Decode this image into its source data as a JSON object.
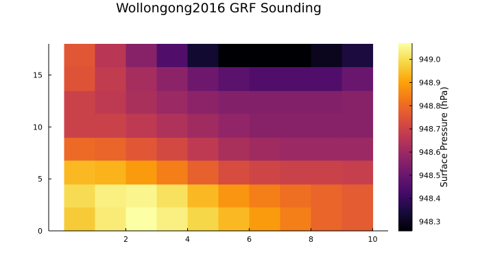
{
  "chart_data": {
    "type": "heatmap",
    "title": "Wollongong2016 GRF Sounding",
    "x_centers": [
      0.5,
      1.5,
      2.5,
      3.5,
      4.5,
      5.5,
      6.5,
      7.5,
      8.5,
      9.5
    ],
    "y_row_edges": [
      0,
      2.3,
      4.5,
      6.8,
      9.0,
      11.3,
      13.5,
      15.8,
      18.0
    ],
    "xlim": [
      -0.5,
      10.5
    ],
    "ylim": [
      0,
      18
    ],
    "xticks": [
      2,
      4,
      6,
      8,
      10
    ],
    "yticks": [
      0,
      5,
      10,
      15
    ],
    "values": [
      [
        948.97,
        949.03,
        949.07,
        949.04,
        948.99,
        948.94,
        948.89,
        948.84,
        948.79,
        948.77
      ],
      [
        949.0,
        949.04,
        949.05,
        949.01,
        948.94,
        948.88,
        948.84,
        948.81,
        948.79,
        948.77
      ],
      [
        948.94,
        948.93,
        948.89,
        948.84,
        948.78,
        948.73,
        948.71,
        948.7,
        948.7,
        948.69
      ],
      [
        948.8,
        948.79,
        948.76,
        948.72,
        948.67,
        948.63,
        948.61,
        948.6,
        948.6,
        948.6
      ],
      [
        948.7,
        948.7,
        948.67,
        948.64,
        948.61,
        948.58,
        948.56,
        948.56,
        948.56,
        948.56
      ],
      [
        948.7,
        948.67,
        948.63,
        948.6,
        948.57,
        948.55,
        948.55,
        948.55,
        948.55,
        948.56
      ],
      [
        948.75,
        948.68,
        948.62,
        948.57,
        948.51,
        948.47,
        948.45,
        948.45,
        948.45,
        948.5
      ],
      [
        948.76,
        948.66,
        948.56,
        948.45,
        948.33,
        948.26,
        948.26,
        948.26,
        948.3,
        948.35
      ]
    ],
    "colorbar": {
      "label": "Surface Pressure (hPa)",
      "min": 948.26,
      "max": 949.07,
      "ticks": [
        948.3,
        948.4,
        948.5,
        948.6,
        948.7,
        948.8,
        948.9,
        949.0
      ],
      "colormap": "inferno"
    }
  }
}
